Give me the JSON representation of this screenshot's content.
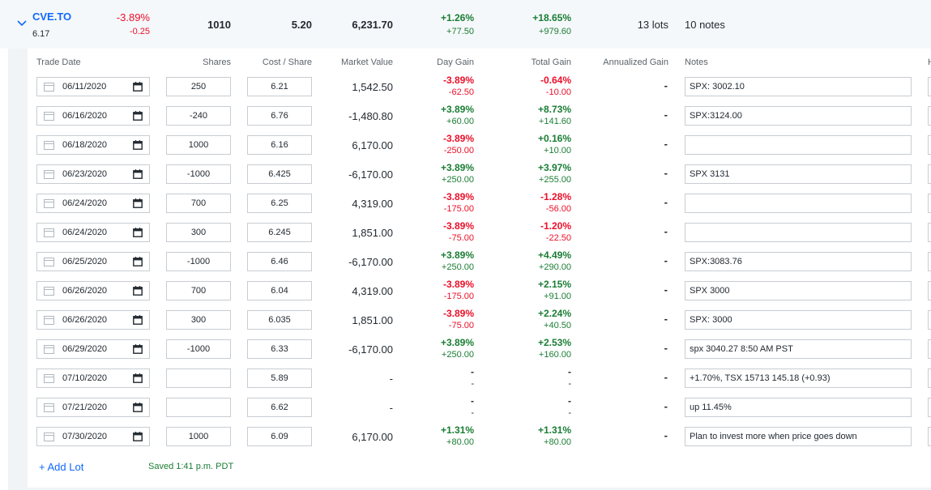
{
  "summary": {
    "symbol": "CVE.TO",
    "price": "6.17",
    "day_change_pct": "-3.89%",
    "day_change": "-0.25",
    "shares": "1010",
    "cost_per_share": "5.20",
    "market_value": "6,231.70",
    "day_gain_pct": "+1.26%",
    "day_gain": "+77.50",
    "total_gain_pct": "+18.65%",
    "total_gain": "+979.60",
    "lots": "13 lots",
    "notes": "10 notes"
  },
  "headers": {
    "trade_date": "Trade Date",
    "shares": "Shares",
    "cost_share": "Cost / Share",
    "market_value": "Market Value",
    "day_gain": "Day Gain",
    "total_gain": "Total Gain",
    "annualized_gain": "Annualized Gain",
    "notes": "Notes",
    "next_stub": "H"
  },
  "lots": [
    {
      "date": "06/11/2020",
      "shares": "250",
      "cost": "6.21",
      "mv": "1,542.50",
      "dgp": "-3.89%",
      "dg": "-62.50",
      "dgs": "neg",
      "tgp": "-0.64%",
      "tg": "-10.00",
      "tgs": "neg",
      "ann": "-",
      "notes": "SPX: 3002.10"
    },
    {
      "date": "06/16/2020",
      "shares": "-240",
      "cost": "6.76",
      "mv": "-1,480.80",
      "dgp": "+3.89%",
      "dg": "+60.00",
      "dgs": "pos",
      "tgp": "+8.73%",
      "tg": "+141.60",
      "tgs": "pos",
      "ann": "-",
      "notes": "SPX:3124.00"
    },
    {
      "date": "06/18/2020",
      "shares": "1000",
      "cost": "6.16",
      "mv": "6,170.00",
      "dgp": "-3.89%",
      "dg": "-250.00",
      "dgs": "neg",
      "tgp": "+0.16%",
      "tg": "+10.00",
      "tgs": "pos",
      "ann": "-",
      "notes": ""
    },
    {
      "date": "06/23/2020",
      "shares": "-1000",
      "cost": "6.425",
      "mv": "-6,170.00",
      "dgp": "+3.89%",
      "dg": "+250.00",
      "dgs": "pos",
      "tgp": "+3.97%",
      "tg": "+255.00",
      "tgs": "pos",
      "ann": "-",
      "notes": "SPX 3131"
    },
    {
      "date": "06/24/2020",
      "shares": "700",
      "cost": "6.25",
      "mv": "4,319.00",
      "dgp": "-3.89%",
      "dg": "-175.00",
      "dgs": "neg",
      "tgp": "-1.28%",
      "tg": "-56.00",
      "tgs": "neg",
      "ann": "-",
      "notes": ""
    },
    {
      "date": "06/24/2020",
      "shares": "300",
      "cost": "6.245",
      "mv": "1,851.00",
      "dgp": "-3.89%",
      "dg": "-75.00",
      "dgs": "neg",
      "tgp": "-1.20%",
      "tg": "-22.50",
      "tgs": "neg",
      "ann": "-",
      "notes": ""
    },
    {
      "date": "06/25/2020",
      "shares": "-1000",
      "cost": "6.46",
      "mv": "-6,170.00",
      "dgp": "+3.89%",
      "dg": "+250.00",
      "dgs": "pos",
      "tgp": "+4.49%",
      "tg": "+290.00",
      "tgs": "pos",
      "ann": "-",
      "notes": "SPX:3083.76"
    },
    {
      "date": "06/26/2020",
      "shares": "700",
      "cost": "6.04",
      "mv": "4,319.00",
      "dgp": "-3.89%",
      "dg": "-175.00",
      "dgs": "neg",
      "tgp": "+2.15%",
      "tg": "+91.00",
      "tgs": "pos",
      "ann": "-",
      "notes": "SPX 3000"
    },
    {
      "date": "06/26/2020",
      "shares": "300",
      "cost": "6.035",
      "mv": "1,851.00",
      "dgp": "-3.89%",
      "dg": "-75.00",
      "dgs": "neg",
      "tgp": "+2.24%",
      "tg": "+40.50",
      "tgs": "pos",
      "ann": "-",
      "notes": "SPX: 3000"
    },
    {
      "date": "06/29/2020",
      "shares": "-1000",
      "cost": "6.33",
      "mv": "-6,170.00",
      "dgp": "+3.89%",
      "dg": "+250.00",
      "dgs": "pos",
      "tgp": "+2.53%",
      "tg": "+160.00",
      "tgs": "pos",
      "ann": "-",
      "notes": "spx 3040.27 8:50 AM PST"
    },
    {
      "date": "07/10/2020",
      "shares": "",
      "cost": "5.89",
      "mv": "-",
      "dgp": "-",
      "dg": "-",
      "dgs": "",
      "tgp": "-",
      "tg": "-",
      "tgs": "",
      "ann": "-",
      "notes": "+1.70%, TSX 15713 145.18 (+0.93)"
    },
    {
      "date": "07/21/2020",
      "shares": "",
      "cost": "6.62",
      "mv": "-",
      "dgp": "-",
      "dg": "-",
      "dgs": "",
      "tgp": "-",
      "tg": "-",
      "tgs": "",
      "ann": "-",
      "notes": "up 11.45%"
    },
    {
      "date": "07/30/2020",
      "shares": "1000",
      "cost": "6.09",
      "mv": "6,170.00",
      "dgp": "+1.31%",
      "dg": "+80.00",
      "dgs": "pos",
      "tgp": "+1.31%",
      "tg": "+80.00",
      "tgs": "pos",
      "ann": "-",
      "notes": "Plan to invest more when price goes down"
    }
  ],
  "footer": {
    "add_lot": "+ Add Lot",
    "saved": "Saved 1:41 p.m. PDT"
  },
  "colors": {
    "link": "#0f69ff",
    "negative": "#eb0f29",
    "positive": "#1a7d34",
    "summary_bg": "#f5f8fa"
  }
}
